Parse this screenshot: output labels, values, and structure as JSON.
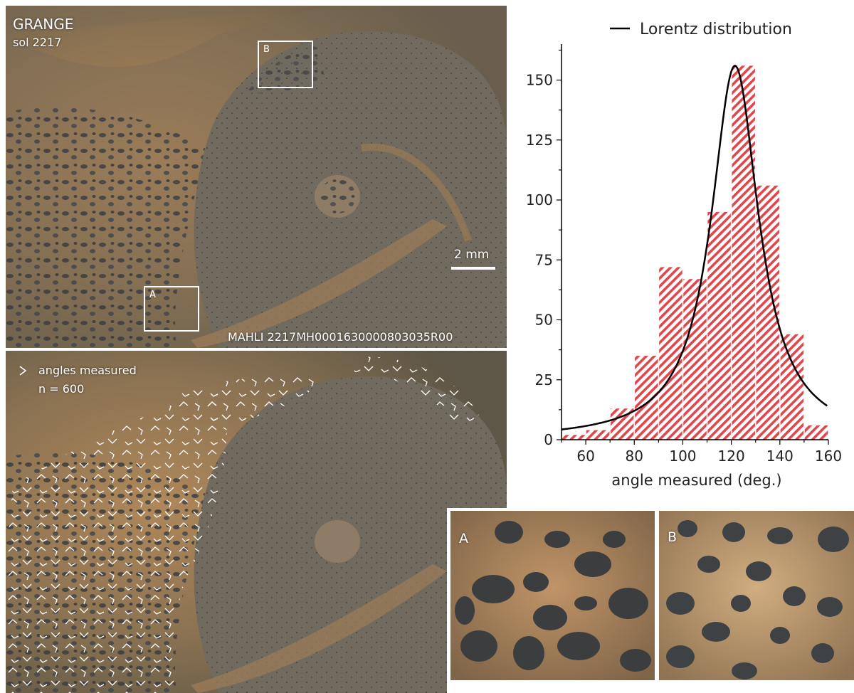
{
  "top_photo": {
    "title": "GRANGE",
    "sol": "sol 2217",
    "scale_label": "2 mm",
    "image_id": "MAHLI 2217MH0001630000803035R00",
    "box_a": "A",
    "box_b": "B"
  },
  "bottom_photo": {
    "legend_label": "angles measured",
    "count": "n = 600"
  },
  "insets": {
    "a_label": "A",
    "b_label": "B"
  },
  "colors": {
    "bar_hatch": "#e0474c",
    "curve": "#000000",
    "rock_tan": "#8a7252",
    "grain_dark": "#3c3d3f"
  },
  "chart_data": {
    "type": "bar",
    "xlabel": "angle measured (deg.)",
    "ylabel": "",
    "xlim": [
      50,
      160
    ],
    "ylim": [
      0,
      165
    ],
    "xticks": [
      60,
      80,
      100,
      120,
      140,
      160
    ],
    "yticks": [
      0,
      25,
      50,
      75,
      100,
      125,
      150
    ],
    "bin_width": 10,
    "bins": [
      {
        "x": 55,
        "value": 2
      },
      {
        "x": 65,
        "value": 4
      },
      {
        "x": 75,
        "value": 13
      },
      {
        "x": 85,
        "value": 35
      },
      {
        "x": 95,
        "value": 72
      },
      {
        "x": 105,
        "value": 67
      },
      {
        "x": 115,
        "value": 95
      },
      {
        "x": 125,
        "value": 156
      },
      {
        "x": 135,
        "value": 106
      },
      {
        "x": 145,
        "value": 44
      },
      {
        "x": 155,
        "value": 6
      }
    ],
    "fit": {
      "name": "Lorentz distribution",
      "type": "lorentz",
      "center": 121.5,
      "peak": 156,
      "hwhm": 12
    },
    "legend": "top"
  }
}
